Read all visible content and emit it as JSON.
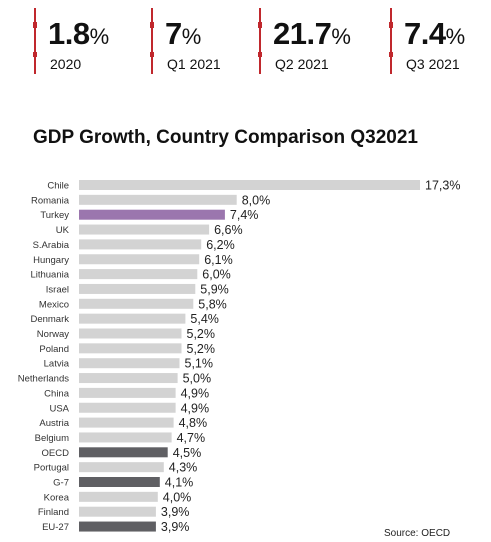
{
  "stats": [
    {
      "value": "1.8",
      "unit": "%",
      "label": "2020"
    },
    {
      "value": "7",
      "unit": "%",
      "label": "Q1 2021"
    },
    {
      "value": "21.7",
      "unit": "%",
      "label": "Q2 2021"
    },
    {
      "value": "7.4",
      "unit": "%",
      "label": "Q3 2021"
    }
  ],
  "source": "Source: OECD",
  "colors": {
    "accent_line": "#c0282d",
    "bar_default": "#d3d3d3",
    "bar_highlight": "#9b76ae",
    "bar_aggregate": "#5f5f63"
  },
  "chart_data": {
    "type": "bar",
    "orientation": "horizontal",
    "title": "GDP Growth, Country Comparison Q32021",
    "xlabel": "",
    "ylabel": "",
    "grid": false,
    "xlim": [
      0,
      17.3
    ],
    "categories": [
      "Chile",
      "Romania",
      "Turkey",
      "UK",
      "S.Arabia",
      "Hungary",
      "Lithuania",
      "Israel",
      "Mexico",
      "Denmark",
      "Norway",
      "Poland",
      "Latvia",
      "Netherlands",
      "China",
      "USA",
      "Austria",
      "Belgium",
      "OECD",
      "Portugal",
      "G-7",
      "Korea",
      "Finland",
      "EU-27"
    ],
    "values": [
      17.3,
      8.0,
      7.4,
      6.6,
      6.2,
      6.1,
      6.0,
      5.9,
      5.8,
      5.4,
      5.2,
      5.2,
      5.1,
      5.0,
      4.9,
      4.9,
      4.8,
      4.7,
      4.5,
      4.3,
      4.1,
      4.0,
      3.9,
      3.9
    ],
    "value_labels": [
      "17,3%",
      "8,0%",
      "7,4%",
      "6,6%",
      "6,2%",
      "6,1%",
      "6,0%",
      "5,9%",
      "5,8%",
      "5,4%",
      "5,2%",
      "5,2%",
      "5,1%",
      "5,0%",
      "4,9%",
      "4,9%",
      "4,8%",
      "4,7%",
      "4,5%",
      "4,3%",
      "4,1%",
      "4,0%",
      "3,9%",
      "3,9%"
    ],
    "highlight": [
      "Turkey"
    ],
    "aggregates": [
      "OECD",
      "G-7",
      "EU-27"
    ]
  }
}
